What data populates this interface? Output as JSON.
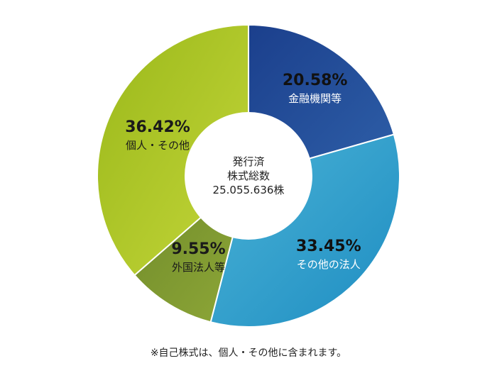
{
  "chart_data": {
    "type": "pie",
    "categories": [
      "金融機関等",
      "その他の法人",
      "外国法人等",
      "個人・その他"
    ],
    "values": [
      20.58,
      33.45,
      9.55,
      36.42
    ],
    "value_labels": [
      "20.58%",
      "33.45%",
      "9.55%",
      "36.42%"
    ],
    "colors_from": [
      "#1b3f8c",
      "#4bb3d6",
      "#6f8a2a",
      "#9ab81a"
    ],
    "colors_to": [
      "#2e5fa8",
      "#1e8dc2",
      "#8fa838",
      "#c4d63a"
    ],
    "center_text": [
      "発行済",
      "株式総数",
      "25.055.636株"
    ]
  },
  "footnote": "※自己株式は、個人・その他に含まれます。"
}
